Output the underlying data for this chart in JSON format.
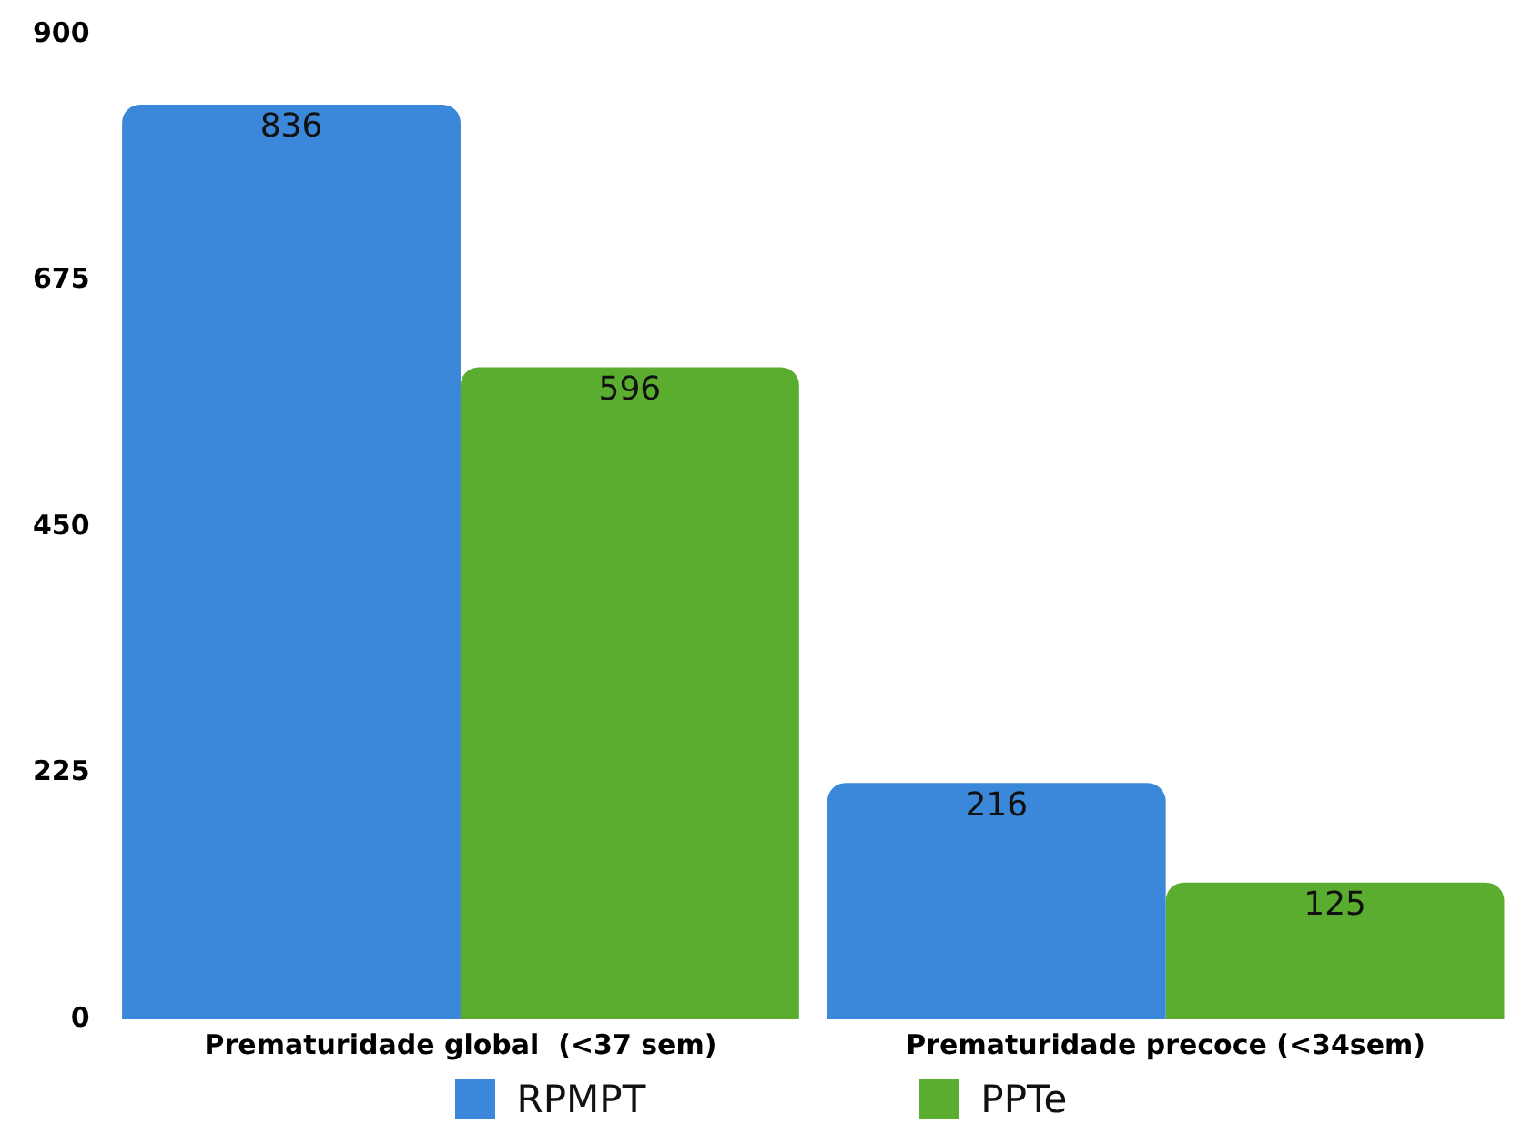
{
  "chart_data": {
    "type": "bar",
    "categories": [
      "Prematuridade global  (<37 sem)",
      "Prematuridade precoce (<34sem)"
    ],
    "series": [
      {
        "name": "RPMPT",
        "color": "#3b87d9",
        "values": [
          836,
          216
        ]
      },
      {
        "name": "PPTe",
        "color": "#5aad2e",
        "values": [
          596,
          125
        ]
      }
    ],
    "ylim": [
      0,
      900
    ],
    "yticks": [
      0,
      225,
      450,
      675,
      900
    ],
    "grid": false,
    "legend": "bottom",
    "data_labels": true
  }
}
